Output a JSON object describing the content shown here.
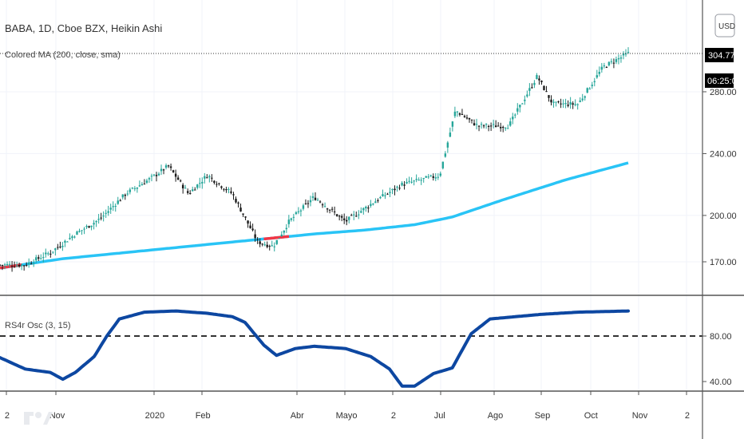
{
  "symbol_title": "BABA, 1D, Cboe BZX, Heikin Ashi",
  "indicator_ma_label": "Colored MA (200, close, sma)",
  "indicator_osc_label": "RS4r Osc (3, 15)",
  "currency_button": "USD",
  "last_price_label": "304.77",
  "countdown_label": "06:25:09",
  "colors": {
    "up_candle": "#26a69a",
    "down_candle": "#1a1a1a",
    "ma_up": "#29c4f6",
    "ma_down": "#f23645",
    "osc_line": "#0d47a1",
    "osc_level": "#333333",
    "grid": "#f0f3fa",
    "separator": "#555555"
  },
  "chart_data": [
    {
      "type": "candlestick",
      "style": "Heikin Ashi",
      "title": "BABA, 1D, Cboe BZX, Heikin Ashi",
      "y_ticks": [
        "170.00",
        "200.00",
        "240.00",
        "280.00"
      ],
      "x_ticks": [
        "2",
        "Nov",
        "2020",
        "Feb",
        "Abr",
        "Mayo",
        "2",
        "Jul",
        "Ago",
        "Sep",
        "Oct",
        "Nov",
        "2"
      ],
      "ylim": [
        155,
        312
      ],
      "last_price": 304.77,
      "price_path": [
        {
          "t": 0,
          "v": 168
        },
        {
          "t": 0.04,
          "v": 168
        },
        {
          "t": 0.08,
          "v": 176
        },
        {
          "t": 0.12,
          "v": 188
        },
        {
          "t": 0.16,
          "v": 198
        },
        {
          "t": 0.2,
          "v": 214
        },
        {
          "t": 0.24,
          "v": 224
        },
        {
          "t": 0.268,
          "v": 232
        },
        {
          "t": 0.3,
          "v": 214
        },
        {
          "t": 0.33,
          "v": 226
        },
        {
          "t": 0.37,
          "v": 214
        },
        {
          "t": 0.41,
          "v": 183
        },
        {
          "t": 0.435,
          "v": 180
        },
        {
          "t": 0.46,
          "v": 196
        },
        {
          "t": 0.5,
          "v": 212
        },
        {
          "t": 0.55,
          "v": 196
        },
        {
          "t": 0.6,
          "v": 210
        },
        {
          "t": 0.64,
          "v": 220
        },
        {
          "t": 0.7,
          "v": 226
        },
        {
          "t": 0.725,
          "v": 268
        },
        {
          "t": 0.76,
          "v": 258
        },
        {
          "t": 0.81,
          "v": 258
        },
        {
          "t": 0.855,
          "v": 290
        },
        {
          "t": 0.88,
          "v": 272
        },
        {
          "t": 0.92,
          "v": 272
        },
        {
          "t": 0.96,
          "v": 296
        },
        {
          "t": 1,
          "v": 304.77
        }
      ],
      "ma_series": {
        "name": "Colored MA (200, close, sma)",
        "points": [
          {
            "t": 0,
            "v": 166
          },
          {
            "t": 0.1,
            "v": 172
          },
          {
            "t": 0.2,
            "v": 176
          },
          {
            "t": 0.3,
            "v": 180
          },
          {
            "t": 0.4,
            "v": 184
          },
          {
            "t": 0.5,
            "v": 188
          },
          {
            "t": 0.58,
            "v": 190.5
          },
          {
            "t": 0.66,
            "v": 194
          },
          {
            "t": 0.72,
            "v": 199
          },
          {
            "t": 0.8,
            "v": 210
          },
          {
            "t": 0.9,
            "v": 223
          },
          {
            "t": 1,
            "v": 234
          }
        ],
        "down_segments": [
          [
            0,
            0.035
          ],
          [
            0.42,
            0.46
          ]
        ]
      }
    },
    {
      "type": "line",
      "title": "RS4r Osc (3, 15)",
      "y_ticks": [
        "40.00",
        "80.00"
      ],
      "ylim": [
        30,
        110
      ],
      "level_line": 80,
      "series": [
        {
          "name": "RS4r Osc (3, 15)",
          "points": [
            {
              "t": 0,
              "v": 61
            },
            {
              "t": 0.04,
              "v": 51
            },
            {
              "t": 0.08,
              "v": 48
            },
            {
              "t": 0.09,
              "v": 45
            },
            {
              "t": 0.1,
              "v": 42
            },
            {
              "t": 0.12,
              "v": 48
            },
            {
              "t": 0.15,
              "v": 62
            },
            {
              "t": 0.17,
              "v": 80
            },
            {
              "t": 0.19,
              "v": 95
            },
            {
              "t": 0.23,
              "v": 101
            },
            {
              "t": 0.28,
              "v": 102
            },
            {
              "t": 0.33,
              "v": 100
            },
            {
              "t": 0.37,
              "v": 97
            },
            {
              "t": 0.39,
              "v": 92
            },
            {
              "t": 0.42,
              "v": 72
            },
            {
              "t": 0.44,
              "v": 63
            },
            {
              "t": 0.47,
              "v": 69
            },
            {
              "t": 0.5,
              "v": 71
            },
            {
              "t": 0.55,
              "v": 69
            },
            {
              "t": 0.59,
              "v": 62
            },
            {
              "t": 0.62,
              "v": 51
            },
            {
              "t": 0.64,
              "v": 36
            },
            {
              "t": 0.66,
              "v": 36
            },
            {
              "t": 0.69,
              "v": 47
            },
            {
              "t": 0.72,
              "v": 52
            },
            {
              "t": 0.75,
              "v": 82
            },
            {
              "t": 0.78,
              "v": 95
            },
            {
              "t": 0.82,
              "v": 97
            },
            {
              "t": 0.86,
              "v": 99
            },
            {
              "t": 0.92,
              "v": 101
            },
            {
              "t": 1,
              "v": 102
            }
          ]
        }
      ]
    }
  ]
}
